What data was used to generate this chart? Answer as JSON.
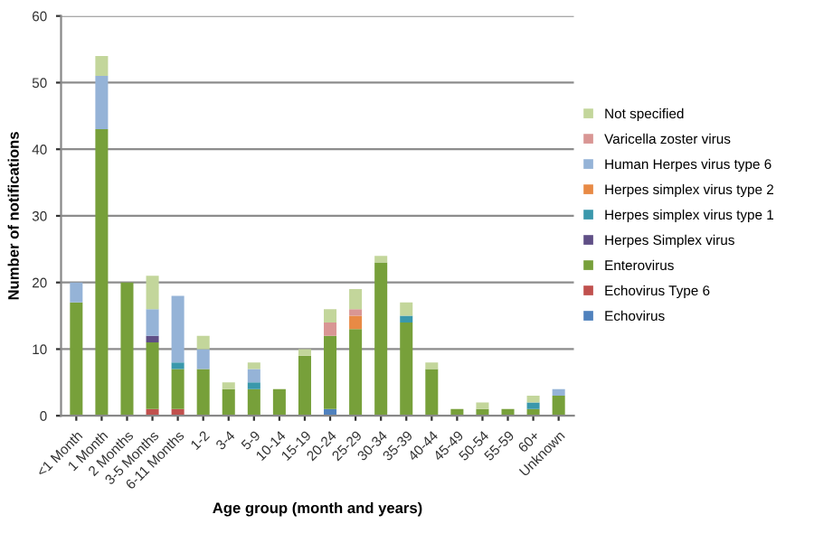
{
  "chart_data": {
    "type": "bar",
    "stacked": true,
    "xlabel": "Age group (month and years)",
    "ylabel": "Number of notifications",
    "categories": [
      "<1 Month",
      "1 Month",
      "2 Months",
      "3-5 Months",
      "6-11 Months",
      "1-2",
      "3-4",
      "5-9",
      "10-14",
      "15-19",
      "20-24",
      "25-29",
      "30-34",
      "35-39",
      "40-44",
      "45-49",
      "50-54",
      "55-59",
      "60+",
      "Unknown"
    ],
    "series": [
      {
        "name": "Echovirus",
        "color": "#4f81bd",
        "values": [
          0,
          0,
          0,
          0,
          0,
          0,
          0,
          0,
          0,
          0,
          1,
          0,
          0,
          0,
          0,
          0,
          0,
          0,
          0,
          0
        ]
      },
      {
        "name": "Echovirus Type 6",
        "color": "#c0504d",
        "values": [
          0,
          0,
          0,
          1,
          1,
          0,
          0,
          0,
          0,
          0,
          0,
          0,
          0,
          0,
          0,
          0,
          0,
          0,
          0,
          0
        ]
      },
      {
        "name": "Enterovirus",
        "color": "#77a03a",
        "values": [
          17,
          43,
          20,
          10,
          6,
          7,
          4,
          4,
          4,
          9,
          11,
          13,
          23,
          14,
          7,
          1,
          1,
          1,
          1,
          3
        ]
      },
      {
        "name": "Herpes Simplex virus",
        "color": "#5f4f86",
        "values": [
          0,
          0,
          0,
          1,
          0,
          0,
          0,
          0,
          0,
          0,
          0,
          0,
          0,
          0,
          0,
          0,
          0,
          0,
          0,
          0
        ]
      },
      {
        "name": "Herpes simplex virus type 1",
        "color": "#3a98ac",
        "values": [
          0,
          0,
          0,
          0,
          1,
          0,
          0,
          1,
          0,
          0,
          0,
          0,
          0,
          1,
          0,
          0,
          0,
          0,
          1,
          0
        ]
      },
      {
        "name": "Herpes simplex virus type 2",
        "color": "#e88a45",
        "values": [
          0,
          0,
          0,
          0,
          0,
          0,
          0,
          0,
          0,
          0,
          0,
          2,
          0,
          0,
          0,
          0,
          0,
          0,
          0,
          0
        ]
      },
      {
        "name": "Human Herpes virus type 6",
        "color": "#95b3d7",
        "values": [
          3,
          8,
          0,
          4,
          10,
          3,
          0,
          2,
          0,
          0,
          0,
          0,
          0,
          0,
          0,
          0,
          0,
          0,
          0,
          1
        ]
      },
      {
        "name": "Varicella zoster virus",
        "color": "#d99694",
        "values": [
          0,
          0,
          0,
          0,
          0,
          0,
          0,
          0,
          0,
          0,
          2,
          1,
          0,
          0,
          0,
          0,
          0,
          0,
          0,
          0
        ]
      },
      {
        "name": "Not specified",
        "color": "#c3d69b",
        "values": [
          0,
          3,
          0,
          5,
          0,
          2,
          1,
          1,
          0,
          1,
          2,
          3,
          1,
          2,
          1,
          0,
          1,
          0,
          1,
          0
        ]
      }
    ],
    "ylim": [
      0,
      60
    ],
    "yticks": [
      0,
      10,
      20,
      30,
      40,
      50,
      60
    ],
    "grid": "y",
    "legend": "right"
  }
}
